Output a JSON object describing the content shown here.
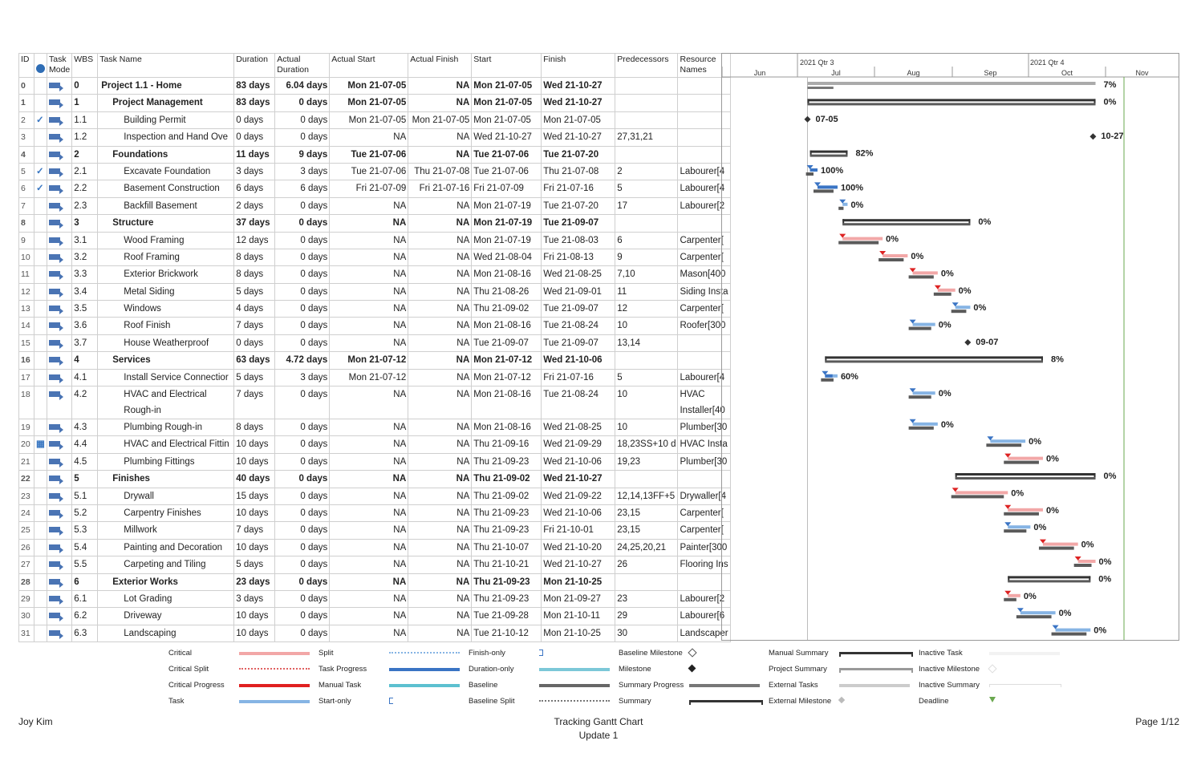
{
  "columns": [
    "ID",
    "Task Mode",
    "WBS",
    "Task Name",
    "Duration",
    "Actual Duration",
    "Actual Start",
    "Actual Finish",
    "Start",
    "Finish",
    "Predecessors",
    "Resource Names"
  ],
  "timescale": {
    "quarters": [
      "2021 Qtr 3",
      "2021 Qtr 4"
    ],
    "months": [
      "Jun",
      "Jul",
      "Aug",
      "Sep",
      "Oct",
      "Nov"
    ]
  },
  "colors": {
    "task": "#86b4e4",
    "critical": "#f2a7a7",
    "critical_progress": "#e02020",
    "progress": "#3a74c4",
    "baseline": "#5a5a5a",
    "summary": "#333333",
    "deadline": "#6aa84f"
  },
  "rows": [
    {
      "id": "0",
      "done": "",
      "wbs": "0",
      "name": "Project 1.1 - Home",
      "dur": "83 days",
      "adur": "6.04 days",
      "astart": "Mon 21-07-05",
      "afinish": "NA",
      "start": "Mon 21-07-05",
      "finish": "Wed 21-10-27",
      "pred": "",
      "res": "",
      "lvl": 0,
      "bold": true,
      "type": "project",
      "s": "2021-07-05",
      "f": "2021-10-27",
      "pct": "7%"
    },
    {
      "id": "1",
      "done": "",
      "wbs": "1",
      "name": "Project Management",
      "dur": "83 days",
      "adur": "0 days",
      "astart": "Mon 21-07-05",
      "afinish": "NA",
      "start": "Mon 21-07-05",
      "finish": "Wed 21-10-27",
      "pred": "",
      "res": "",
      "lvl": 1,
      "bold": true,
      "type": "summary",
      "s": "2021-07-05",
      "f": "2021-10-27",
      "pct": "0%"
    },
    {
      "id": "2",
      "done": "✓",
      "wbs": "1.1",
      "name": "Building Permit",
      "dur": "0 days",
      "adur": "0 days",
      "astart": "Mon 21-07-05",
      "afinish": "Mon 21-07-05",
      "start": "Mon 21-07-05",
      "finish": "Mon 21-07-05",
      "pred": "",
      "res": "",
      "lvl": 2,
      "type": "milestone",
      "s": "2021-07-05",
      "f": "2021-07-05",
      "pct": "07-05"
    },
    {
      "id": "3",
      "done": "",
      "wbs": "1.2",
      "name": "Inspection and Hand Ove",
      "dur": "0 days",
      "adur": "0 days",
      "astart": "NA",
      "afinish": "NA",
      "start": "Wed 21-10-27",
      "finish": "Wed 21-10-27",
      "pred": "27,31,21",
      "res": "",
      "lvl": 2,
      "type": "milestone",
      "s": "2021-10-27",
      "f": "2021-10-27",
      "pct": "10-27"
    },
    {
      "id": "4",
      "done": "",
      "wbs": "2",
      "name": "Foundations",
      "dur": "11 days",
      "adur": "9 days",
      "astart": "Tue 21-07-06",
      "afinish": "NA",
      "start": "Tue 21-07-06",
      "finish": "Tue 21-07-20",
      "pred": "",
      "res": "",
      "lvl": 1,
      "bold": true,
      "type": "summary",
      "s": "2021-07-06",
      "f": "2021-07-20",
      "pct": "82%"
    },
    {
      "id": "5",
      "done": "✓",
      "wbs": "2.1",
      "name": "Excavate Foundation",
      "dur": "3 days",
      "adur": "3 days",
      "astart": "Tue 21-07-06",
      "afinish": "Thu 21-07-08",
      "start": "Tue 21-07-06",
      "finish": "Thu 21-07-08",
      "pred": "2",
      "res": "Labourer[4",
      "lvl": 2,
      "type": "task",
      "crit": false,
      "s": "2021-07-06",
      "f": "2021-07-08",
      "pct": "100%"
    },
    {
      "id": "6",
      "done": "✓",
      "wbs": "2.2",
      "name": "Basement Construction",
      "dur": "6 days",
      "adur": "6 days",
      "astart": "Fri 21-07-09",
      "afinish": "Fri 21-07-16",
      "start": "Fri 21-07-09",
      "finish": "Fri 21-07-16",
      "pred": "5",
      "res": "Labourer[4",
      "lvl": 2,
      "type": "task",
      "crit": false,
      "s": "2021-07-09",
      "f": "2021-07-16",
      "pct": "100%"
    },
    {
      "id": "7",
      "done": "",
      "wbs": "2.3",
      "name": "Backfill Basement",
      "dur": "2 days",
      "adur": "0 days",
      "astart": "NA",
      "afinish": "NA",
      "start": "Mon 21-07-19",
      "finish": "Tue 21-07-20",
      "pred": "17",
      "res": "Labourer[2",
      "lvl": 2,
      "type": "task",
      "crit": false,
      "s": "2021-07-19",
      "f": "2021-07-20",
      "pct": "0%"
    },
    {
      "id": "8",
      "done": "",
      "wbs": "3",
      "name": "Structure",
      "dur": "37 days",
      "adur": "0 days",
      "astart": "NA",
      "afinish": "NA",
      "start": "Mon 21-07-19",
      "finish": "Tue 21-09-07",
      "pred": "",
      "res": "",
      "lvl": 1,
      "bold": true,
      "type": "summary",
      "s": "2021-07-19",
      "f": "2021-09-07",
      "pct": "0%"
    },
    {
      "id": "9",
      "done": "",
      "wbs": "3.1",
      "name": "Wood Framing",
      "dur": "12 days",
      "adur": "0 days",
      "astart": "NA",
      "afinish": "NA",
      "start": "Mon 21-07-19",
      "finish": "Tue 21-08-03",
      "pred": "6",
      "res": "Carpenter[",
      "lvl": 2,
      "type": "task",
      "crit": true,
      "s": "2021-07-19",
      "f": "2021-08-03",
      "pct": "0%"
    },
    {
      "id": "10",
      "done": "",
      "wbs": "3.2",
      "name": "Roof Framing",
      "dur": "8 days",
      "adur": "0 days",
      "astart": "NA",
      "afinish": "NA",
      "start": "Wed 21-08-04",
      "finish": "Fri 21-08-13",
      "pred": "9",
      "res": "Carpenter[",
      "lvl": 2,
      "type": "task",
      "crit": true,
      "s": "2021-08-04",
      "f": "2021-08-13",
      "pct": "0%"
    },
    {
      "id": "11",
      "done": "",
      "wbs": "3.3",
      "name": "Exterior Brickwork",
      "dur": "8 days",
      "adur": "0 days",
      "astart": "NA",
      "afinish": "NA",
      "start": "Mon 21-08-16",
      "finish": "Wed 21-08-25",
      "pred": "7,10",
      "res": "Mason[400",
      "lvl": 2,
      "type": "task",
      "crit": true,
      "s": "2021-08-16",
      "f": "2021-08-25",
      "pct": "0%"
    },
    {
      "id": "12",
      "done": "",
      "wbs": "3.4",
      "name": "Metal Siding",
      "dur": "5 days",
      "adur": "0 days",
      "astart": "NA",
      "afinish": "NA",
      "start": "Thu 21-08-26",
      "finish": "Wed 21-09-01",
      "pred": "11",
      "res": "Siding Insta",
      "lvl": 2,
      "type": "task",
      "crit": true,
      "s": "2021-08-26",
      "f": "2021-09-01",
      "pct": "0%"
    },
    {
      "id": "13",
      "done": "",
      "wbs": "3.5",
      "name": "Windows",
      "dur": "4 days",
      "adur": "0 days",
      "astart": "NA",
      "afinish": "NA",
      "start": "Thu 21-09-02",
      "finish": "Tue 21-09-07",
      "pred": "12",
      "res": "Carpenter[",
      "lvl": 2,
      "type": "task",
      "crit": false,
      "s": "2021-09-02",
      "f": "2021-09-07",
      "pct": "0%"
    },
    {
      "id": "14",
      "done": "",
      "wbs": "3.6",
      "name": "Roof Finish",
      "dur": "7 days",
      "adur": "0 days",
      "astart": "NA",
      "afinish": "NA",
      "start": "Mon 21-08-16",
      "finish": "Tue 21-08-24",
      "pred": "10",
      "res": "Roofer[300",
      "lvl": 2,
      "type": "task",
      "crit": false,
      "s": "2021-08-16",
      "f": "2021-08-24",
      "pct": "0%"
    },
    {
      "id": "15",
      "done": "",
      "wbs": "3.7",
      "name": "House Weatherproof",
      "dur": "0 days",
      "adur": "0 days",
      "astart": "NA",
      "afinish": "NA",
      "start": "Tue 21-09-07",
      "finish": "Tue 21-09-07",
      "pred": "13,14",
      "res": "",
      "lvl": 2,
      "type": "milestone",
      "s": "2021-09-07",
      "f": "2021-09-07",
      "pct": "09-07"
    },
    {
      "id": "16",
      "done": "",
      "wbs": "4",
      "name": "Services",
      "dur": "63 days",
      "adur": "4.72 days",
      "astart": "Mon 21-07-12",
      "afinish": "NA",
      "start": "Mon 21-07-12",
      "finish": "Wed 21-10-06",
      "pred": "",
      "res": "",
      "lvl": 1,
      "bold": true,
      "type": "summary",
      "s": "2021-07-12",
      "f": "2021-10-06",
      "pct": "8%"
    },
    {
      "id": "17",
      "done": "",
      "wbs": "4.1",
      "name": "Install Service Connectior",
      "dur": "5 days",
      "adur": "3 days",
      "astart": "Mon 21-07-12",
      "afinish": "NA",
      "start": "Mon 21-07-12",
      "finish": "Fri 21-07-16",
      "pred": "5",
      "res": "Labourer[4",
      "lvl": 2,
      "type": "task",
      "crit": false,
      "s": "2021-07-12",
      "f": "2021-07-16",
      "pct": "60%"
    },
    {
      "id": "18",
      "done": "",
      "wbs": "4.2",
      "name": "HVAC and Electrical Rough-in",
      "dur": "7 days",
      "adur": "0 days",
      "astart": "NA",
      "afinish": "NA",
      "start": "Mon 21-08-16",
      "finish": "Tue 21-08-24",
      "pred": "10",
      "res": "HVAC Installer[40",
      "lvl": 2,
      "tall": true,
      "type": "task",
      "crit": false,
      "s": "2021-08-16",
      "f": "2021-08-24",
      "pct": "0%"
    },
    {
      "id": "19",
      "done": "",
      "wbs": "4.3",
      "name": "Plumbing Rough-in",
      "dur": "8 days",
      "adur": "0 days",
      "astart": "NA",
      "afinish": "NA",
      "start": "Mon 21-08-16",
      "finish": "Wed 21-08-25",
      "pred": "10",
      "res": "Plumber[30",
      "lvl": 2,
      "type": "task",
      "crit": false,
      "s": "2021-08-16",
      "f": "2021-08-25",
      "pct": "0%"
    },
    {
      "id": "20",
      "done": "▦",
      "wbs": "4.4",
      "name": "HVAC and Electrical Fittin",
      "dur": "10 days",
      "adur": "0 days",
      "astart": "NA",
      "afinish": "NA",
      "start": "Thu 21-09-16",
      "finish": "Wed 21-09-29",
      "pred": "18,23SS+10 d",
      "res": "HVAC Insta",
      "lvl": 2,
      "type": "task",
      "crit": false,
      "s": "2021-09-16",
      "f": "2021-09-29",
      "pct": "0%"
    },
    {
      "id": "21",
      "done": "",
      "wbs": "4.5",
      "name": "Plumbing Fittings",
      "dur": "10 days",
      "adur": "0 days",
      "astart": "NA",
      "afinish": "NA",
      "start": "Thu 21-09-23",
      "finish": "Wed 21-10-06",
      "pred": "19,23",
      "res": "Plumber[30",
      "lvl": 2,
      "type": "task",
      "crit": true,
      "s": "2021-09-23",
      "f": "2021-10-06",
      "pct": "0%"
    },
    {
      "id": "22",
      "done": "",
      "wbs": "5",
      "name": "Finishes",
      "dur": "40 days",
      "adur": "0 days",
      "astart": "NA",
      "afinish": "NA",
      "start": "Thu 21-09-02",
      "finish": "Wed 21-10-27",
      "pred": "",
      "res": "",
      "lvl": 1,
      "bold": true,
      "type": "summary",
      "s": "2021-09-02",
      "f": "2021-10-27",
      "pct": "0%"
    },
    {
      "id": "23",
      "done": "",
      "wbs": "5.1",
      "name": "Drywall",
      "dur": "15 days",
      "adur": "0 days",
      "astart": "NA",
      "afinish": "NA",
      "start": "Thu 21-09-02",
      "finish": "Wed 21-09-22",
      "pred": "12,14,13FF+5",
      "res": "Drywaller[4",
      "lvl": 2,
      "type": "task",
      "crit": true,
      "s": "2021-09-02",
      "f": "2021-09-22",
      "pct": "0%"
    },
    {
      "id": "24",
      "done": "",
      "wbs": "5.2",
      "name": "Carpentry Finishes",
      "dur": "10 days",
      "adur": "0 days",
      "astart": "NA",
      "afinish": "NA",
      "start": "Thu 21-09-23",
      "finish": "Wed 21-10-06",
      "pred": "23,15",
      "res": "Carpenter[",
      "lvl": 2,
      "type": "task",
      "crit": true,
      "s": "2021-09-23",
      "f": "2021-10-06",
      "pct": "0%"
    },
    {
      "id": "25",
      "done": "",
      "wbs": "5.3",
      "name": "Millwork",
      "dur": "7 days",
      "adur": "0 days",
      "astart": "NA",
      "afinish": "NA",
      "start": "Thu 21-09-23",
      "finish": "Fri 21-10-01",
      "pred": "23,15",
      "res": "Carpenter[",
      "lvl": 2,
      "type": "task",
      "crit": false,
      "s": "2021-09-23",
      "f": "2021-10-01",
      "pct": "0%"
    },
    {
      "id": "26",
      "done": "",
      "wbs": "5.4",
      "name": "Painting and Decoration",
      "dur": "10 days",
      "adur": "0 days",
      "astart": "NA",
      "afinish": "NA",
      "start": "Thu 21-10-07",
      "finish": "Wed 21-10-20",
      "pred": "24,25,20,21",
      "res": "Painter[300",
      "lvl": 2,
      "type": "task",
      "crit": true,
      "s": "2021-10-07",
      "f": "2021-10-20",
      "pct": "0%"
    },
    {
      "id": "27",
      "done": "",
      "wbs": "5.5",
      "name": "Carpeting and Tiling",
      "dur": "5 days",
      "adur": "0 days",
      "astart": "NA",
      "afinish": "NA",
      "start": "Thu 21-10-21",
      "finish": "Wed 21-10-27",
      "pred": "26",
      "res": "Flooring Ins",
      "lvl": 2,
      "type": "task",
      "crit": true,
      "s": "2021-10-21",
      "f": "2021-10-27",
      "pct": "0%"
    },
    {
      "id": "28",
      "done": "",
      "wbs": "6",
      "name": "Exterior Works",
      "dur": "23 days",
      "adur": "0 days",
      "astart": "NA",
      "afinish": "NA",
      "start": "Thu 21-09-23",
      "finish": "Mon 21-10-25",
      "pred": "",
      "res": "",
      "lvl": 1,
      "bold": true,
      "type": "summary",
      "s": "2021-09-23",
      "f": "2021-10-25",
      "pct": "0%"
    },
    {
      "id": "29",
      "done": "",
      "wbs": "6.1",
      "name": "Lot Grading",
      "dur": "3 days",
      "adur": "0 days",
      "astart": "NA",
      "afinish": "NA",
      "start": "Thu 21-09-23",
      "finish": "Mon 21-09-27",
      "pred": "23",
      "res": "Labourer[2",
      "lvl": 2,
      "type": "task",
      "crit": true,
      "s": "2021-09-23",
      "f": "2021-09-27",
      "pct": "0%"
    },
    {
      "id": "30",
      "done": "",
      "wbs": "6.2",
      "name": "Driveway",
      "dur": "10 days",
      "adur": "0 days",
      "astart": "NA",
      "afinish": "NA",
      "start": "Tue 21-09-28",
      "finish": "Mon 21-10-11",
      "pred": "29",
      "res": "Labourer[6",
      "lvl": 2,
      "type": "task",
      "crit": false,
      "s": "2021-09-28",
      "f": "2021-10-11",
      "pct": "0%"
    },
    {
      "id": "31",
      "done": "",
      "wbs": "6.3",
      "name": "Landscaping",
      "dur": "10 days",
      "adur": "0 days",
      "astart": "NA",
      "afinish": "NA",
      "start": "Tue 21-10-12",
      "finish": "Mon 21-10-25",
      "pred": "30",
      "res": "Landscaper",
      "lvl": 2,
      "type": "task",
      "crit": false,
      "s": "2021-10-12",
      "f": "2021-10-25",
      "pct": "0%"
    }
  ],
  "legend": [
    {
      "label": "Critical",
      "style": "critical"
    },
    {
      "label": "Critical Split",
      "style": "critical-split"
    },
    {
      "label": "Critical Progress",
      "style": "critical-progress"
    },
    {
      "label": "Task",
      "style": "task"
    },
    {
      "label": "Split",
      "style": "split"
    },
    {
      "label": "Task Progress",
      "style": "task-progress"
    },
    {
      "label": "Manual Task",
      "style": "manual-task"
    },
    {
      "label": "Start-only",
      "style": "start-only"
    },
    {
      "label": "Finish-only",
      "style": "finish-only"
    },
    {
      "label": "Duration-only",
      "style": "duration-only"
    },
    {
      "label": "Baseline",
      "style": "baseline"
    },
    {
      "label": "Baseline Split",
      "style": "baseline-split"
    },
    {
      "label": "Baseline Milestone",
      "style": "baseline-milestone"
    },
    {
      "label": "Milestone",
      "style": "milestone"
    },
    {
      "label": "Summary Progress",
      "style": "summary-progress"
    },
    {
      "label": "Summary",
      "style": "summary"
    },
    {
      "label": "Manual Summary",
      "style": "manual-summary"
    },
    {
      "label": "Project Summary",
      "style": "project-summary"
    },
    {
      "label": "External Tasks",
      "style": "external-tasks"
    },
    {
      "label": "External Milestone",
      "style": "external-milestone"
    },
    {
      "label": "Inactive Task",
      "style": "inactive-task"
    },
    {
      "label": "Inactive Milestone",
      "style": "inactive-milestone"
    },
    {
      "label": "Inactive Summary",
      "style": "inactive-summary"
    },
    {
      "label": "Deadline",
      "style": "deadline"
    }
  ],
  "footer": {
    "author": "Joy Kim",
    "title": "Tracking Gantt Chart",
    "subtitle": "Update 1",
    "page": "Page 1/12"
  }
}
